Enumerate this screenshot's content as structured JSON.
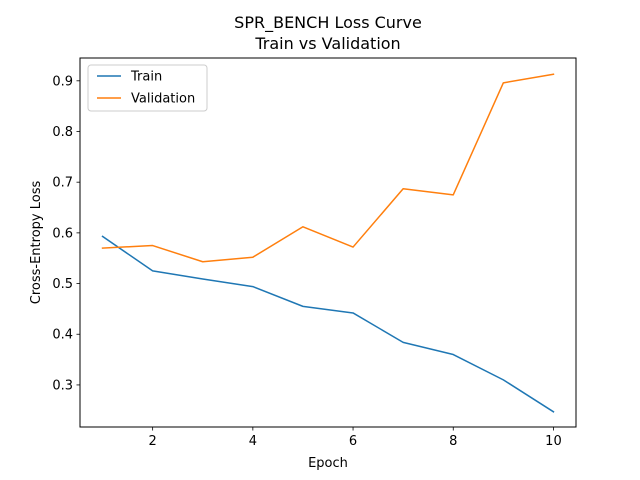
{
  "chart_data": {
    "type": "line",
    "title": "SPR_BENCH Loss Curve",
    "subtitle": "Train vs Validation",
    "xlabel": "Epoch",
    "ylabel": "Cross-Entropy Loss",
    "xlim": [
      0.55,
      10.45
    ],
    "ylim": [
      0.217,
      0.945
    ],
    "xticks": [
      2,
      4,
      6,
      8,
      10
    ],
    "yticks": [
      0.3,
      0.4,
      0.5,
      0.6,
      0.7,
      0.8,
      0.9
    ],
    "ytick_labels": [
      "0.3",
      "0.4",
      "0.5",
      "0.6",
      "0.7",
      "0.8",
      "0.9"
    ],
    "grid": false,
    "legend_placement": "upper-left",
    "x": [
      1,
      2,
      3,
      4,
      5,
      6,
      7,
      8,
      9,
      10
    ],
    "series": [
      {
        "name": "Train",
        "color": "#1f77b4",
        "values": [
          0.593,
          0.525,
          0.509,
          0.494,
          0.455,
          0.442,
          0.384,
          0.36,
          0.31,
          0.247
        ]
      },
      {
        "name": "Validation",
        "color": "#ff7f0e",
        "values": [
          0.57,
          0.575,
          0.543,
          0.552,
          0.612,
          0.572,
          0.687,
          0.675,
          0.896,
          0.913
        ]
      }
    ]
  }
}
